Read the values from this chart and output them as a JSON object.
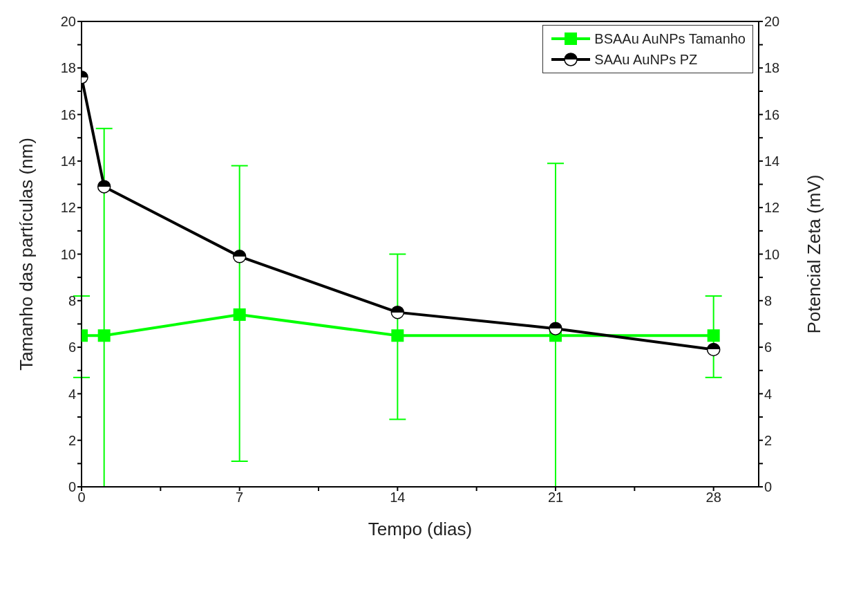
{
  "chart_data": {
    "type": "line",
    "xlabel": "Tempo (dias)",
    "ylabel": "Tamanho das partículas (nm)",
    "y2label": "Potencial Zeta (mV)",
    "x": [
      0,
      1,
      7,
      14,
      21,
      28
    ],
    "series": [
      {
        "name": "BSAAu AuNPs Tamanho",
        "color": "#00ff00",
        "marker": "square",
        "values": [
          6.5,
          6.5,
          7.4,
          6.5,
          6.5,
          6.5
        ],
        "errors": [
          [
            4.7,
            8.2
          ],
          [
            0,
            15.4
          ],
          [
            1.1,
            13.8
          ],
          [
            2.9,
            10.0
          ],
          [
            0,
            13.9
          ],
          [
            4.7,
            8.2
          ]
        ]
      },
      {
        "name": "SAAu AuNPs PZ",
        "color": "#000000",
        "marker": "circle",
        "axis": "y2",
        "values": [
          17.6,
          12.9,
          9.9,
          7.5,
          6.8,
          5.9
        ]
      }
    ],
    "xlim": [
      0,
      30
    ],
    "xticks": [
      0,
      {
        "value": 3.5,
        "label": null
      },
      7,
      {
        "value": 10.5,
        "label": null
      },
      14,
      {
        "value": 17.5,
        "label": null
      },
      21,
      {
        "value": 24.5,
        "label": null
      },
      28
    ],
    "ylim": [
      0,
      20
    ],
    "yticks": [
      0,
      {
        "value": 1,
        "label": null
      },
      2,
      {
        "value": 3,
        "label": null
      },
      4,
      {
        "value": 5,
        "label": null
      },
      6,
      {
        "value": 7,
        "label": null
      },
      8,
      {
        "value": 9,
        "label": null
      },
      10,
      {
        "value": 11,
        "label": null
      },
      12,
      {
        "value": 13,
        "label": null
      },
      14,
      {
        "value": 15,
        "label": null
      },
      16,
      {
        "value": 17,
        "label": null
      },
      18,
      {
        "value": 19,
        "label": null
      },
      20
    ],
    "y2lim": [
      0,
      20
    ],
    "y2ticks": [
      0,
      {
        "value": 1,
        "label": null
      },
      2,
      {
        "value": 3,
        "label": null
      },
      4,
      {
        "value": 5,
        "label": null
      },
      6,
      {
        "value": 7,
        "label": null
      },
      8,
      {
        "value": 9,
        "label": null
      },
      10,
      {
        "value": 11,
        "label": null
      },
      12,
      {
        "value": 13,
        "label": null
      },
      14,
      {
        "value": 15,
        "label": null
      },
      16,
      {
        "value": 17,
        "label": null
      },
      18,
      {
        "value": 19,
        "label": null
      },
      20
    ],
    "grid": false,
    "legend": "top right",
    "line_style": "solid"
  }
}
